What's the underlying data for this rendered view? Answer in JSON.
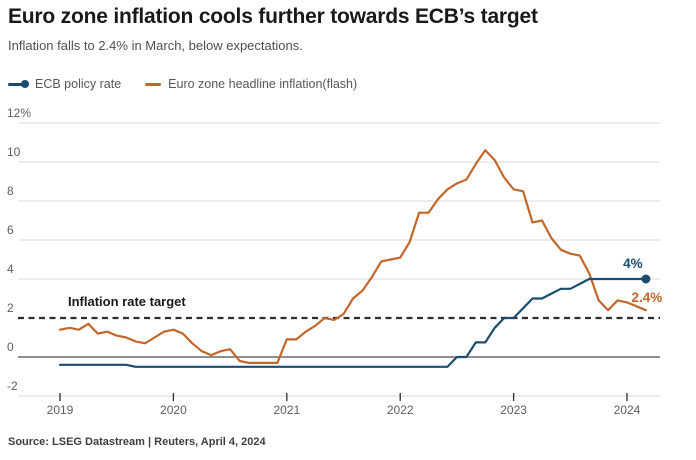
{
  "header": {
    "title": "Euro zone inflation cools further towards ECB’s target",
    "subtitle": "Inflation falls to 2.4% in March, below expectations."
  },
  "source": "Source: LSEG Datastream | Reuters, April 4, 2024",
  "chart_data": {
    "type": "line",
    "x_start": "2019-01",
    "x_interval": "monthly",
    "x_ticks": [
      "2019",
      "2020",
      "2021",
      "2022",
      "2023",
      "2024"
    ],
    "ylim": [
      -2,
      12
    ],
    "y_ticks": [
      {
        "value": 12,
        "label": "12%"
      },
      {
        "value": 10,
        "label": "10"
      },
      {
        "value": 8,
        "label": "8"
      },
      {
        "value": 6,
        "label": "6"
      },
      {
        "value": 4,
        "label": "4"
      },
      {
        "value": 2,
        "label": "2"
      },
      {
        "value": 0,
        "label": "0"
      },
      {
        "value": -2,
        "label": "-2"
      }
    ],
    "grid": true,
    "legend_position": "top-left",
    "target_line": {
      "value": 2,
      "label": "Inflation rate target",
      "style": "dashed",
      "color": "#2e2e2e"
    },
    "colors": {
      "grid": "#d9d9d9",
      "zero_line": "#4a4a4a",
      "axis_text": "#5b5f63",
      "tick": "#2b2b2b"
    },
    "series": [
      {
        "name": "ECB policy rate",
        "color": "#1b4d70",
        "end_label": "4%",
        "end_marker": "dot",
        "values": [
          -0.4,
          -0.4,
          -0.4,
          -0.4,
          -0.4,
          -0.4,
          -0.4,
          -0.4,
          -0.5,
          -0.5,
          -0.5,
          -0.5,
          -0.5,
          -0.5,
          -0.5,
          -0.5,
          -0.5,
          -0.5,
          -0.5,
          -0.5,
          -0.5,
          -0.5,
          -0.5,
          -0.5,
          -0.5,
          -0.5,
          -0.5,
          -0.5,
          -0.5,
          -0.5,
          -0.5,
          -0.5,
          -0.5,
          -0.5,
          -0.5,
          -0.5,
          -0.5,
          -0.5,
          -0.5,
          -0.5,
          -0.5,
          -0.5,
          0,
          0,
          0.75,
          0.75,
          1.5,
          2,
          2,
          2.5,
          3,
          3,
          3.25,
          3.5,
          3.5,
          3.75,
          4,
          4,
          4,
          4,
          4,
          4,
          4
        ]
      },
      {
        "name": "Euro zone headline inflation(flash)",
        "color": "#c2662b",
        "end_label": "2.4%",
        "end_marker": "none",
        "values": [
          1.4,
          1.5,
          1.4,
          1.7,
          1.2,
          1.3,
          1.1,
          1.0,
          0.8,
          0.7,
          1.0,
          1.3,
          1.4,
          1.2,
          0.7,
          0.3,
          0.1,
          0.3,
          0.4,
          -0.2,
          -0.3,
          -0.3,
          -0.3,
          -0.3,
          0.9,
          0.9,
          1.3,
          1.6,
          2.0,
          1.9,
          2.2,
          3.0,
          3.4,
          4.1,
          4.9,
          5.0,
          5.1,
          5.9,
          7.4,
          7.4,
          8.1,
          8.6,
          8.9,
          9.1,
          9.9,
          10.6,
          10.1,
          9.2,
          8.6,
          8.5,
          6.9,
          7.0,
          6.1,
          5.5,
          5.3,
          5.2,
          4.3,
          2.9,
          2.4,
          2.9,
          2.8,
          2.6,
          2.4
        ]
      }
    ]
  }
}
